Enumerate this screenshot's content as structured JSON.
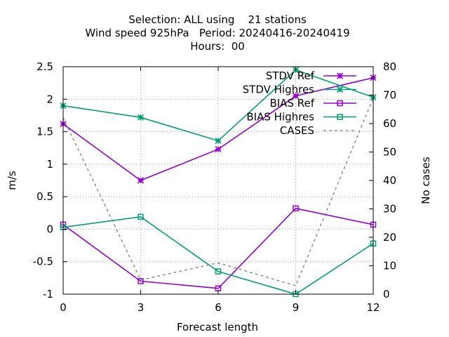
{
  "chart_data": {
    "type": "line",
    "title_lines": [
      "Selection: ALL using    21 stations",
      "Wind speed 925hPa   Period: 20240416-20240419",
      "Hours:  00"
    ],
    "xlabel": "Forecast length",
    "ylabel": "m/s",
    "y2label": "No cases",
    "x": [
      0,
      3,
      6,
      9,
      12
    ],
    "xticks": [
      "0",
      "3",
      "6",
      "9",
      "12"
    ],
    "xlim": [
      0,
      12
    ],
    "ylim": [
      -1,
      2.5
    ],
    "yticks": [
      "-1",
      "-0.5",
      "0",
      "0.5",
      "1",
      "1.5",
      "2",
      "2.5"
    ],
    "y2lim": [
      0,
      80
    ],
    "y2ticks": [
      "0",
      "10",
      "20",
      "30",
      "40",
      "50",
      "60",
      "70",
      "80"
    ],
    "grid": true,
    "legend_position": "top-right",
    "series": [
      {
        "name": "STDV Ref",
        "axis": "y",
        "color": "#9400d3",
        "marker": "star",
        "dash": "",
        "values": [
          1.62,
          0.75,
          1.23,
          2.05,
          2.33
        ]
      },
      {
        "name": "STDV Highres",
        "axis": "y",
        "color": "#009e73",
        "marker": "star",
        "dash": "",
        "values": [
          1.9,
          1.72,
          1.36,
          2.45,
          2.03
        ]
      },
      {
        "name": "BIAS Ref",
        "axis": "y",
        "color": "#9400d3",
        "marker": "square",
        "dash": "",
        "values": [
          0.07,
          -0.8,
          -0.91,
          0.32,
          0.07
        ]
      },
      {
        "name": "BIAS Highres",
        "axis": "y",
        "color": "#009e73",
        "marker": "square",
        "dash": "",
        "values": [
          0.03,
          0.19,
          -0.65,
          -1.0,
          -0.22
        ]
      },
      {
        "name": "CASES",
        "axis": "y2",
        "color": "#808080",
        "marker": "none",
        "dash": "4,4",
        "values": [
          62,
          5,
          11,
          3,
          69
        ]
      }
    ]
  }
}
